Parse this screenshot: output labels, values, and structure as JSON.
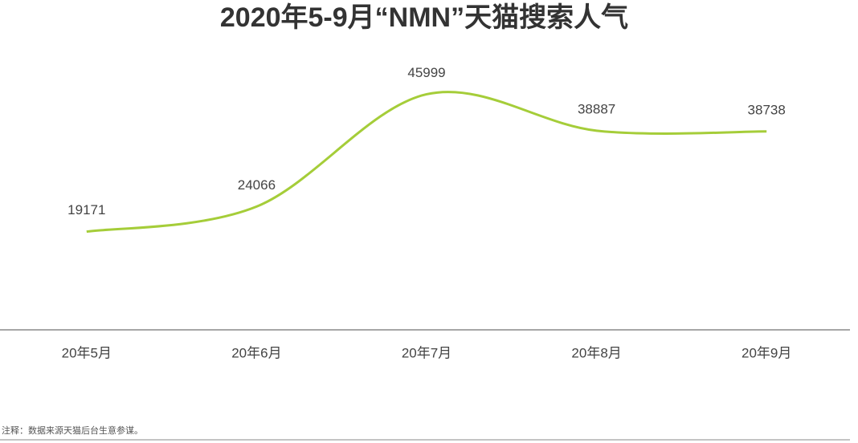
{
  "chart_data": {
    "type": "line",
    "title": "2020年5-9月“NMN”天猫搜索人气",
    "categories": [
      "20年5月",
      "20年6月",
      "20年7月",
      "20年8月",
      "20年9月"
    ],
    "values": [
      19171,
      24066,
      45999,
      38887,
      38738
    ],
    "color": "#a5cd39",
    "ylim": [
      0,
      55000
    ],
    "note": "注释：数据来源天猫后台生意参谋。"
  }
}
